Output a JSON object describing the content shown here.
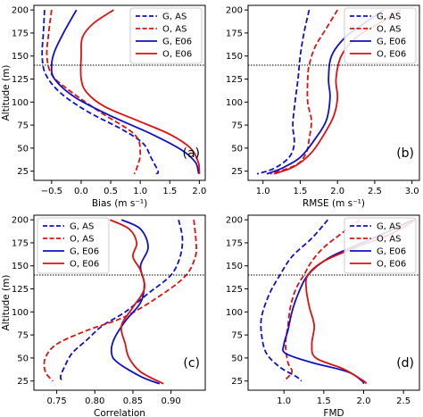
{
  "chart_data": [
    {
      "type": "line",
      "panel": "(a)",
      "xlabel": "Bias (m s⁻¹)",
      "ylabel": "Altitude (m)",
      "xlim": [
        -0.8,
        2.1
      ],
      "ylim": [
        15,
        205
      ],
      "xticks": [
        -0.5,
        0.0,
        0.5,
        1.0,
        1.5,
        2.0
      ],
      "xtick_labels": [
        "−0.5",
        "0.0",
        "0.5",
        "1.0",
        "1.5",
        "2.0"
      ],
      "yticks": [
        25,
        50,
        75,
        100,
        125,
        150,
        175,
        200
      ],
      "yref_line": 140,
      "legend": {
        "position": "top-right",
        "entries": [
          "G, AS",
          "O, AS",
          "G, E06",
          "O, E06"
        ]
      },
      "series": [
        {
          "name": "G, AS",
          "color": "#1010c8",
          "dash": true,
          "points": [
            [
              -0.62,
              200
            ],
            [
              -0.64,
              175
            ],
            [
              -0.66,
              150
            ],
            [
              -0.6,
              130
            ],
            [
              -0.35,
              110
            ],
            [
              0.1,
              90
            ],
            [
              0.7,
              70
            ],
            [
              1.05,
              55
            ],
            [
              1.18,
              40
            ],
            [
              1.3,
              25
            ],
            [
              1.27,
              22
            ]
          ]
        },
        {
          "name": "O, AS",
          "color": "#e01010",
          "dash": true,
          "points": [
            [
              -0.5,
              200
            ],
            [
              -0.55,
              175
            ],
            [
              -0.58,
              150
            ],
            [
              -0.5,
              130
            ],
            [
              -0.25,
              115
            ],
            [
              0.3,
              90
            ],
            [
              0.9,
              65
            ],
            [
              1.0,
              45
            ],
            [
              0.95,
              30
            ],
            [
              0.9,
              22
            ]
          ]
        },
        {
          "name": "G, E06",
          "color": "#1010c8",
          "dash": false,
          "points": [
            [
              -0.08,
              200
            ],
            [
              -0.3,
              175
            ],
            [
              -0.45,
              155
            ],
            [
              -0.5,
              140
            ],
            [
              -0.45,
              125
            ],
            [
              -0.1,
              105
            ],
            [
              0.5,
              85
            ],
            [
              1.2,
              65
            ],
            [
              1.7,
              48
            ],
            [
              1.93,
              35
            ],
            [
              1.98,
              25
            ],
            [
              1.99,
              22
            ]
          ]
        },
        {
          "name": "O, E06",
          "color": "#e01010",
          "dash": false,
          "points": [
            [
              0.55,
              200
            ],
            [
              0.2,
              185
            ],
            [
              0.02,
              170
            ],
            [
              0.0,
              150
            ],
            [
              0.0,
              125
            ],
            [
              0.1,
              110
            ],
            [
              0.4,
              95
            ],
            [
              0.95,
              80
            ],
            [
              1.5,
              65
            ],
            [
              1.85,
              50
            ],
            [
              1.98,
              35
            ],
            [
              2.0,
              25
            ],
            [
              2.0,
              22
            ]
          ]
        }
      ]
    },
    {
      "type": "line",
      "panel": "(b)",
      "xlabel": "RMSE (m s⁻¹)",
      "ylabel": "",
      "xlim": [
        0.8,
        3.1
      ],
      "ylim": [
        15,
        205
      ],
      "xticks": [
        1.0,
        1.5,
        2.0,
        2.5,
        3.0
      ],
      "xtick_labels": [
        "1.0",
        "1.5",
        "2.0",
        "2.5",
        "3.0"
      ],
      "yticks": [
        25,
        50,
        75,
        100,
        125,
        150,
        175,
        200
      ],
      "yref_line": 140,
      "legend": {
        "position": "top-right",
        "entries": [
          "G, AS",
          "O, AS",
          "G, E06",
          "O, E06"
        ]
      },
      "series": [
        {
          "name": "G, AS",
          "color": "#1010c8",
          "dash": true,
          "points": [
            [
              1.62,
              200
            ],
            [
              1.55,
              175
            ],
            [
              1.5,
              150
            ],
            [
              1.47,
              125
            ],
            [
              1.43,
              100
            ],
            [
              1.4,
              75
            ],
            [
              1.42,
              55
            ],
            [
              1.35,
              40
            ],
            [
              1.15,
              28
            ],
            [
              0.92,
              22
            ]
          ]
        },
        {
          "name": "O, AS",
          "color": "#e01010",
          "dash": true,
          "points": [
            [
              2.0,
              200
            ],
            [
              1.85,
              180
            ],
            [
              1.7,
              160
            ],
            [
              1.62,
              140
            ],
            [
              1.6,
              125
            ],
            [
              1.6,
              100
            ],
            [
              1.65,
              80
            ],
            [
              1.62,
              60
            ],
            [
              1.58,
              45
            ],
            [
              1.45,
              32
            ],
            [
              1.1,
              22
            ]
          ]
        },
        {
          "name": "G, E06",
          "color": "#1010c8",
          "dash": false,
          "points": [
            [
              2.62,
              200
            ],
            [
              2.35,
              185
            ],
            [
              2.1,
              170
            ],
            [
              1.92,
              150
            ],
            [
              1.88,
              125
            ],
            [
              1.9,
              105
            ],
            [
              1.85,
              80
            ],
            [
              1.7,
              60
            ],
            [
              1.5,
              40
            ],
            [
              1.25,
              28
            ],
            [
              1.05,
              22
            ]
          ]
        },
        {
          "name": "O, E06",
          "color": "#e01010",
          "dash": false,
          "points": [
            [
              2.85,
              200
            ],
            [
              2.55,
              185
            ],
            [
              2.25,
              170
            ],
            [
              2.05,
              150
            ],
            [
              1.98,
              125
            ],
            [
              2.0,
              105
            ],
            [
              1.95,
              85
            ],
            [
              1.82,
              65
            ],
            [
              1.65,
              45
            ],
            [
              1.42,
              30
            ],
            [
              1.15,
              22
            ]
          ]
        }
      ]
    },
    {
      "type": "line",
      "panel": "(c)",
      "xlabel": "Correlation",
      "ylabel": "Altitude (m)",
      "xlim": [
        0.72,
        0.945
      ],
      "ylim": [
        15,
        205
      ],
      "xticks": [
        0.75,
        0.8,
        0.85,
        0.9
      ],
      "xtick_labels": [
        "0.75",
        "0.80",
        "0.85",
        "0.90"
      ],
      "yticks": [
        25,
        50,
        75,
        100,
        125,
        150,
        175,
        200
      ],
      "yref_line": 140,
      "legend": {
        "position": "top-left",
        "entries": [
          "G, AS",
          "O, AS",
          "G, E06",
          "O, E06"
        ]
      },
      "series": [
        {
          "name": "G, AS",
          "color": "#1010c8",
          "dash": true,
          "points": [
            [
              0.91,
              200
            ],
            [
              0.915,
              180
            ],
            [
              0.912,
              160
            ],
            [
              0.9,
              140
            ],
            [
              0.87,
              120
            ],
            [
              0.84,
              100
            ],
            [
              0.81,
              85
            ],
            [
              0.79,
              70
            ],
            [
              0.77,
              55
            ],
            [
              0.76,
              40
            ],
            [
              0.755,
              30
            ],
            [
              0.757,
              25
            ]
          ]
        },
        {
          "name": "O, AS",
          "color": "#e01010",
          "dash": true,
          "points": [
            [
              0.93,
              200
            ],
            [
              0.933,
              175
            ],
            [
              0.932,
              160
            ],
            [
              0.92,
              140
            ],
            [
              0.89,
              120
            ],
            [
              0.84,
              95
            ],
            [
              0.79,
              80
            ],
            [
              0.75,
              65
            ],
            [
              0.735,
              50
            ],
            [
              0.735,
              35
            ],
            [
              0.745,
              25
            ]
          ]
        },
        {
          "name": "G, E06",
          "color": "#1010c8",
          "dash": false,
          "points": [
            [
              0.835,
              200
            ],
            [
              0.86,
              190
            ],
            [
              0.87,
              170
            ],
            [
              0.86,
              150
            ],
            [
              0.865,
              130
            ],
            [
              0.86,
              110
            ],
            [
              0.84,
              90
            ],
            [
              0.825,
              70
            ],
            [
              0.822,
              55
            ],
            [
              0.83,
              45
            ],
            [
              0.86,
              30
            ],
            [
              0.885,
              22
            ]
          ]
        },
        {
          "name": "O, E06",
          "color": "#e01010",
          "dash": false,
          "points": [
            [
              0.82,
              200
            ],
            [
              0.845,
              190
            ],
            [
              0.855,
              175
            ],
            [
              0.85,
              160
            ],
            [
              0.86,
              145
            ],
            [
              0.865,
              125
            ],
            [
              0.85,
              105
            ],
            [
              0.835,
              85
            ],
            [
              0.84,
              65
            ],
            [
              0.845,
              50
            ],
            [
              0.86,
              35
            ],
            [
              0.89,
              22
            ]
          ]
        }
      ]
    },
    {
      "type": "line",
      "panel": "(d)",
      "xlabel": "FMD",
      "ylabel": "",
      "xlim": [
        0.55,
        2.7
      ],
      "ylim": [
        15,
        205
      ],
      "xticks": [
        1.0,
        1.5,
        2.0,
        2.5
      ],
      "xtick_labels": [
        "1.0",
        "1.5",
        "2.0",
        "2.5"
      ],
      "yticks": [
        25,
        50,
        75,
        100,
        125,
        150,
        175,
        200
      ],
      "yref_line": 140,
      "legend": {
        "position": "top-right",
        "entries": [
          "G, AS",
          "O, AS",
          "G, E06",
          "O, E06"
        ]
      },
      "series": [
        {
          "name": "G, AS",
          "color": "#1010c8",
          "dash": true,
          "points": [
            [
              1.55,
              200
            ],
            [
              1.35,
              180
            ],
            [
              1.1,
              160
            ],
            [
              0.95,
              140
            ],
            [
              0.82,
              120
            ],
            [
              0.72,
              95
            ],
            [
              0.72,
              75
            ],
            [
              0.78,
              55
            ],
            [
              0.95,
              40
            ],
            [
              1.15,
              30
            ],
            [
              1.22,
              25
            ]
          ]
        },
        {
          "name": "O, AS",
          "color": "#e01010",
          "dash": true,
          "points": [
            [
              1.95,
              200
            ],
            [
              1.72,
              185
            ],
            [
              1.5,
              170
            ],
            [
              1.35,
              155
            ],
            [
              1.25,
              140
            ],
            [
              1.15,
              125
            ],
            [
              1.08,
              105
            ],
            [
              1.05,
              85
            ],
            [
              1.02,
              65
            ],
            [
              1.05,
              45
            ],
            [
              1.1,
              35
            ],
            [
              1.0,
              25
            ]
          ]
        },
        {
          "name": "G, E06",
          "color": "#1010c8",
          "dash": false,
          "points": [
            [
              2.62,
              200
            ],
            [
              2.25,
              185
            ],
            [
              1.9,
              172
            ],
            [
              1.55,
              158
            ],
            [
              1.3,
              140
            ],
            [
              1.18,
              120
            ],
            [
              1.1,
              100
            ],
            [
              1.05,
              80
            ],
            [
              1.0,
              65
            ],
            [
              1.02,
              55
            ],
            [
              1.35,
              45
            ],
            [
              1.8,
              35
            ],
            [
              1.98,
              25
            ],
            [
              2.0,
              22
            ]
          ]
        },
        {
          "name": "O, E06",
          "color": "#e01010",
          "dash": false,
          "points": [
            [
              2.65,
              200
            ],
            [
              2.35,
              185
            ],
            [
              1.9,
              170
            ],
            [
              1.5,
              155
            ],
            [
              1.3,
              140
            ],
            [
              1.28,
              125
            ],
            [
              1.32,
              105
            ],
            [
              1.38,
              85
            ],
            [
              1.35,
              65
            ],
            [
              1.4,
              50
            ],
            [
              1.75,
              38
            ],
            [
              2.0,
              25
            ],
            [
              2.03,
              22
            ]
          ]
        }
      ]
    }
  ]
}
